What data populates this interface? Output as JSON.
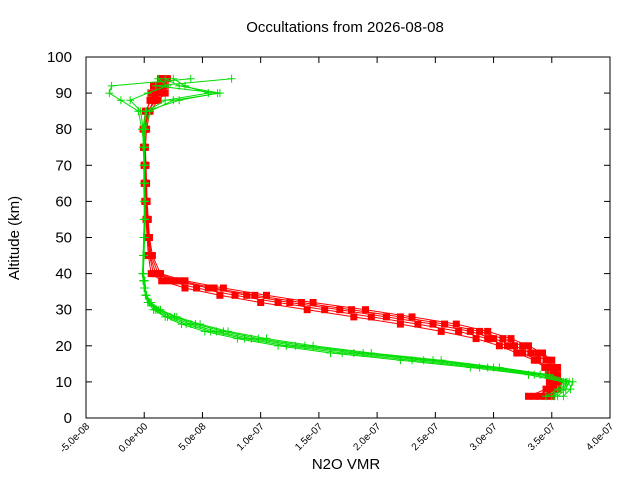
{
  "chart_data": {
    "type": "line",
    "title": "Occultations from 2026-08-08",
    "xlabel": "N2O VMR",
    "ylabel": "Altitude (km)",
    "xlim": [
      -5e-08,
      4e-07
    ],
    "ylim": [
      0,
      100
    ],
    "x_ticks": [
      -5e-08,
      0,
      5e-08,
      1e-07,
      1.5e-07,
      2e-07,
      2.5e-07,
      3e-07,
      3.5e-07,
      4e-07
    ],
    "x_tick_labels": [
      "-5.0e-08",
      "0.0e+00",
      "5.0e-08",
      "1.0e-07",
      "1.5e-07",
      "2.0e-07",
      "2.5e-07",
      "3.0e-07",
      "3.5e-07",
      "4.0e-07"
    ],
    "y_ticks": [
      0,
      10,
      20,
      30,
      40,
      50,
      60,
      70,
      80,
      90,
      100
    ],
    "y_tick_labels": [
      "0",
      "10",
      "20",
      "30",
      "40",
      "50",
      "60",
      "70",
      "80",
      "90",
      "100"
    ],
    "grid": false,
    "legend": "none",
    "series": [
      {
        "marker": "square",
        "color": "#ff0000",
        "profiles": [
          {
            "altitude": [
              6,
              8,
              10,
              12,
              14,
              16,
              18,
              20,
              22,
              24,
              26,
              28,
              30,
              32,
              34,
              36,
              38,
              40,
              45,
              50,
              55,
              60,
              65,
              70,
              75,
              80,
              85,
              88,
              90,
              92,
              94
            ],
            "vmr": [
              3.3e-07,
              3.45e-07,
              3.48e-07,
              3.47e-07,
              3.44e-07,
              3.35e-07,
              3.2e-07,
              3.05e-07,
              2.85e-07,
              2.55e-07,
              2.2e-07,
              1.8e-07,
              1.4e-07,
              1e-07,
              6.5e-08,
              3.5e-08,
              1.5e-08,
              6e-09,
              3.5e-09,
              2.5e-09,
              1.5e-09,
              5e-10,
              0,
              0,
              -5e-10,
              -1e-09,
              1e-09,
              6e-09,
              1.2e-08,
              1.6e-08,
              2e-08
            ]
          },
          {
            "altitude": [
              6,
              8,
              10,
              12,
              14,
              16,
              18,
              20,
              22,
              24,
              26,
              28,
              30,
              32,
              34,
              36,
              38,
              40,
              45,
              50,
              55,
              60,
              65,
              70,
              75,
              80,
              85,
              88,
              90,
              92,
              94
            ],
            "vmr": [
              3.35e-07,
              3.5e-07,
              3.52e-07,
              3.5e-07,
              3.46e-07,
              3.38e-07,
              3.25e-07,
              3.12e-07,
              2.95e-07,
              2.7e-07,
              2.35e-07,
              1.95e-07,
              1.55e-07,
              1.15e-07,
              7.8e-08,
              4.5e-08,
              2e-08,
              8e-09,
              4.5e-09,
              3e-09,
              2e-09,
              1e-09,
              5e-10,
              0,
              -5e-10,
              5e-10,
              4e-09,
              8e-09,
              1.4e-08,
              1.2e-08,
              1.6e-08
            ]
          },
          {
            "altitude": [
              6,
              8,
              10,
              12,
              14,
              16,
              18,
              20,
              22,
              24,
              26,
              28,
              30,
              32,
              34,
              36,
              38,
              40,
              45,
              50,
              55,
              60,
              65,
              70,
              75,
              80,
              85,
              88,
              90,
              92,
              94
            ],
            "vmr": [
              3.4e-07,
              3.55e-07,
              3.56e-07,
              3.53e-07,
              3.5e-07,
              3.45e-07,
              3.32e-07,
              3.18e-07,
              3e-07,
              2.8e-07,
              2.48e-07,
              2.08e-07,
              1.68e-07,
              1.25e-07,
              8.8e-08,
              5.5e-08,
              2.6e-08,
              1e-08,
              5e-09,
              3.5e-09,
              2.5e-09,
              1.5e-09,
              1e-09,
              5e-10,
              0,
              1e-09,
              2e-09,
              5e-09,
              1e-08,
              1.8e-08,
              1.5e-08
            ]
          },
          {
            "altitude": [
              6,
              8,
              10,
              12,
              14,
              16,
              18,
              20,
              22,
              24,
              26,
              28,
              30,
              32,
              34,
              36,
              38,
              40,
              45,
              50,
              55,
              60,
              65,
              70,
              75,
              80,
              85,
              88,
              90,
              92,
              94
            ],
            "vmr": [
              3.45e-07,
              3.52e-07,
              3.54e-07,
              3.55e-07,
              3.52e-07,
              3.48e-07,
              3.38e-07,
              3.25e-07,
              3.08e-07,
              2.88e-07,
              2.58e-07,
              2.2e-07,
              1.78e-07,
              1.35e-07,
              9.5e-08,
              6e-08,
              3e-08,
              1.2e-08,
              6e-09,
              4e-09,
              3e-09,
              2e-09,
              1.5e-09,
              1e-09,
              5e-10,
              0,
              3e-09,
              1e-08,
              6e-09,
              1.3e-08,
              1.9e-08
            ]
          },
          {
            "altitude": [
              6,
              8,
              10,
              12,
              14,
              16,
              18,
              20,
              22,
              24,
              26,
              28,
              30,
              32,
              34,
              36,
              38,
              40,
              45,
              50,
              55,
              60,
              65,
              70,
              75,
              80,
              85,
              88,
              90,
              92,
              94
            ],
            "vmr": [
              3.5e-07,
              3.48e-07,
              3.5e-07,
              3.52e-07,
              3.55e-07,
              3.5e-07,
              3.42e-07,
              3.3e-07,
              3.15e-07,
              2.95e-07,
              2.68e-07,
              2.3e-07,
              1.9e-07,
              1.45e-07,
              1.05e-07,
              6.8e-08,
              3.5e-08,
              1.4e-08,
              7e-09,
              4.5e-09,
              3.5e-09,
              2.5e-09,
              2e-09,
              1.5e-09,
              1e-09,
              2e-09,
              5e-09,
              1.2e-08,
              1.8e-08,
              8e-09,
              1.4e-08
            ]
          }
        ]
      },
      {
        "marker": "plus",
        "color": "#00dd00",
        "profiles": [
          {
            "altitude": [
              6,
              8,
              10,
              12,
              14,
              16,
              18,
              20,
              22,
              24,
              26,
              28,
              30,
              32,
              34,
              36,
              38,
              40,
              45,
              50,
              55,
              60,
              65,
              70,
              75,
              80,
              85,
              88,
              90,
              92,
              94
            ],
            "vmr": [
              3.45e-07,
              3.55e-07,
              3.6e-07,
              3.3e-07,
              2.8e-07,
              2.2e-07,
              1.6e-07,
              1.15e-07,
              8e-08,
              5.2e-08,
              3.2e-08,
              1.8e-08,
              8e-09,
              3e-09,
              1e-09,
              0,
              -1e-09,
              -1e-09,
              -5e-10,
              0,
              5e-10,
              0,
              -5e-10,
              0,
              0,
              -5e-10,
              1e-09,
              3e-08,
              6.3e-08,
              1e-08,
              7.5e-08
            ]
          },
          {
            "altitude": [
              6,
              8,
              10,
              12,
              14,
              16,
              18,
              20,
              22,
              24,
              26,
              28,
              30,
              32,
              34,
              36,
              38,
              40,
              45,
              50,
              55,
              60,
              65,
              70,
              75,
              80,
              85,
              88,
              90,
              92,
              94
            ],
            "vmr": [
              3.55e-07,
              3.62e-07,
              3.65e-07,
              3.4e-07,
              2.95e-07,
              2.4e-07,
              1.8e-07,
              1.3e-07,
              9.2e-08,
              6.2e-08,
              4e-08,
              2.3e-08,
              1.1e-08,
              4.5e-09,
              1.5e-09,
              5e-10,
              0,
              -1.5e-09,
              -1e-09,
              0,
              5e-10,
              1e-09,
              0,
              -5e-10,
              0,
              -2e-09,
              -5e-09,
              -2e-08,
              -3e-08,
              -2.8e-08,
              4e-08
            ]
          },
          {
            "altitude": [
              6,
              8,
              10,
              12,
              14,
              16,
              18,
              20,
              22,
              24,
              26,
              28,
              30,
              32,
              34,
              36,
              38,
              40,
              45,
              50,
              55,
              60,
              65,
              70,
              75,
              80,
              85,
              88,
              90,
              92,
              94
            ],
            "vmr": [
              3.6e-07,
              3.66e-07,
              3.68e-07,
              3.48e-07,
              3.05e-07,
              2.55e-07,
              1.95e-07,
              1.45e-07,
              1.05e-07,
              7.2e-08,
              4.8e-08,
              2.8e-08,
              1.4e-08,
              6e-09,
              2e-09,
              1e-09,
              5e-10,
              -1e-09,
              -5e-10,
              5e-10,
              1e-09,
              5e-10,
              0,
              0,
              5e-10,
              1e-09,
              5e-09,
              2.5e-08,
              6.5e-08,
              3e-08,
              1.8e-08
            ]
          },
          {
            "altitude": [
              6,
              8,
              10,
              12,
              14,
              16,
              18,
              20,
              22,
              24,
              26,
              28,
              30,
              32,
              34,
              36,
              38,
              40,
              45,
              50,
              55,
              60,
              65,
              70,
              75,
              80,
              85,
              88,
              90,
              92,
              94
            ],
            "vmr": [
              3.5e-07,
              3.58e-07,
              3.62e-07,
              3.35e-07,
              2.88e-07,
              2.3e-07,
              1.7e-07,
              1.22e-07,
              8.6e-08,
              5.7e-08,
              3.6e-08,
              2e-08,
              9.5e-09,
              4e-09,
              1.2e-09,
              0,
              -5e-10,
              -1e-09,
              0,
              0,
              0,
              5e-10,
              5e-10,
              0,
              -1e-09,
              -1e-09,
              -3e-09,
              -1.2e-08,
              3e-09,
              2e-08,
              1.2e-08
            ]
          },
          {
            "altitude": [
              6,
              8,
              10,
              12,
              14,
              16,
              18,
              20,
              22,
              24,
              26,
              28,
              30,
              32,
              34,
              36,
              38,
              40,
              45,
              50,
              55,
              60,
              65,
              70,
              75,
              80,
              85,
              88,
              90,
              92,
              94
            ],
            "vmr": [
              3.52e-07,
              3.6e-07,
              3.63e-07,
              3.45e-07,
              3e-07,
              2.48e-07,
              1.88e-07,
              1.38e-07,
              9.8e-08,
              6.8e-08,
              4.4e-08,
              2.6e-08,
              1.25e-08,
              5e-09,
              1.8e-09,
              5e-10,
              0,
              -5e-10,
              -1e-09,
              -5e-10,
              0,
              0,
              5e-10,
              5e-10,
              0,
              0,
              2e-09,
              1.8e-08,
              5.5e-08,
              3.5e-08,
              2.5e-08
            ]
          }
        ]
      }
    ]
  }
}
